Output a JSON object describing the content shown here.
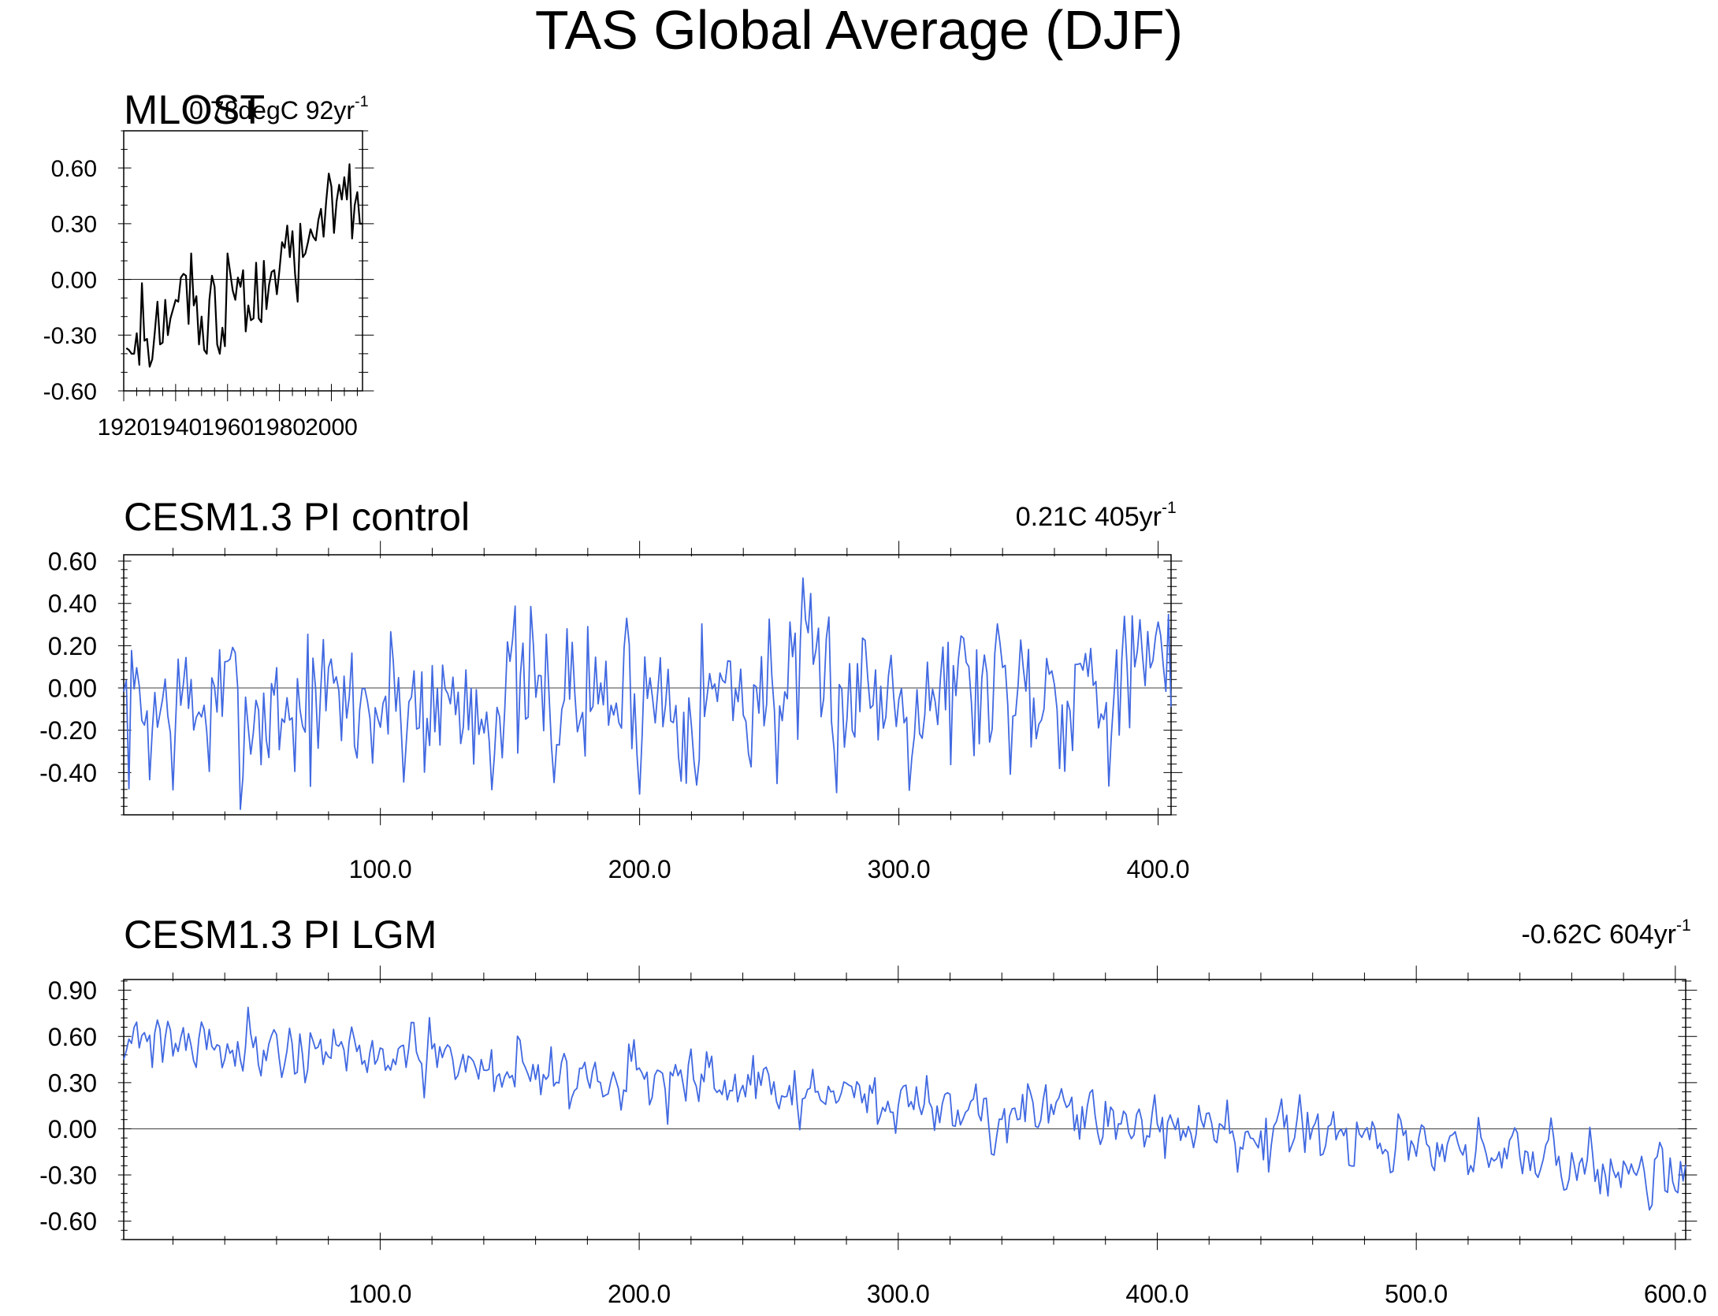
{
  "page": {
    "title": "TAS Global Average (DJF)"
  },
  "chart_data": [
    {
      "id": "mlost",
      "type": "line",
      "title": "MLOST",
      "trend_label": "0.78degC 92yr",
      "trend_sup": "-1",
      "color": "#000000",
      "xlim": [
        1920,
        2012
      ],
      "ylim": [
        -0.6,
        0.8
      ],
      "ytick_labels": [
        "0.60",
        "0.30",
        "0.00",
        "-0.30",
        "-0.60"
      ],
      "ytick_values": [
        0.6,
        0.3,
        0.0,
        -0.3,
        -0.6
      ],
      "xtick_labels": [
        "1920",
        "1940",
        "1960",
        "1980",
        "2000"
      ],
      "xtick_values": [
        1920,
        1940,
        1960,
        1980,
        2000
      ],
      "x_start": 1921,
      "values": [
        -0.37,
        -0.38,
        -0.4,
        -0.4,
        -0.29,
        -0.46,
        -0.02,
        -0.33,
        -0.32,
        -0.47,
        -0.43,
        -0.28,
        -0.12,
        -0.35,
        -0.34,
        -0.11,
        -0.3,
        -0.21,
        -0.16,
        -0.11,
        -0.12,
        0.01,
        0.03,
        0.02,
        -0.24,
        0.14,
        -0.14,
        -0.09,
        -0.35,
        -0.2,
        -0.38,
        -0.4,
        -0.11,
        0.02,
        -0.04,
        -0.35,
        -0.4,
        -0.26,
        -0.36,
        0.14,
        0.04,
        -0.06,
        -0.11,
        0.01,
        -0.04,
        0.05,
        -0.28,
        -0.14,
        -0.22,
        -0.21,
        0.09,
        -0.21,
        -0.23,
        0.1,
        -0.16,
        -0.03,
        0.04,
        0.05,
        -0.08,
        0.05,
        0.2,
        0.17,
        0.29,
        0.12,
        0.26,
        0.03,
        -0.12,
        0.3,
        0.12,
        0.14,
        0.2,
        0.27,
        0.23,
        0.21,
        0.32,
        0.38,
        0.23,
        0.42,
        0.57,
        0.5,
        0.25,
        0.42,
        0.51,
        0.43,
        0.55,
        0.43,
        0.62,
        0.22,
        0.4,
        0.47,
        0.3,
        0.3
      ]
    },
    {
      "id": "pi-control",
      "type": "line",
      "title": "CESM1.3 PI control",
      "trend_label": "0.21C 405yr",
      "trend_sup": "-1",
      "color": "#4169e1",
      "xlim": [
        1,
        405
      ],
      "ylim": [
        -0.6,
        0.63
      ],
      "ytick_labels": [
        "0.60",
        "0.40",
        "0.20",
        "0.00",
        "-0.20",
        "-0.40"
      ],
      "ytick_values": [
        0.6,
        0.4,
        0.2,
        0.0,
        -0.2,
        -0.4
      ],
      "xtick_labels": [
        "100.0",
        "200.0",
        "300.0",
        "400.0"
      ],
      "xtick_values": [
        100,
        200,
        300,
        400
      ],
      "n_points": 405,
      "generator": {
        "seed": 7,
        "mean_start": -0.12,
        "mean_end": 0.05,
        "amp": 0.26,
        "min": -0.58,
        "max": 0.52
      }
    },
    {
      "id": "pi-lgm",
      "type": "line",
      "title": "CESM1.3 PI LGM",
      "trend_label": "-0.62C 604yr",
      "trend_sup": "-1",
      "color": "#4169e1",
      "xlim": [
        1,
        604
      ],
      "ylim": [
        -0.72,
        0.97
      ],
      "ytick_labels": [
        "0.90",
        "0.60",
        "0.30",
        "0.00",
        "-0.30",
        "-0.60"
      ],
      "ytick_values": [
        0.9,
        0.6,
        0.3,
        0.0,
        -0.3,
        -0.6
      ],
      "xtick_labels": [
        "100.0",
        "200.0",
        "300.0",
        "400.0",
        "500.0",
        "600.0"
      ],
      "xtick_values": [
        100,
        200,
        300,
        400,
        500,
        600
      ],
      "n_points": 604,
      "generator": {
        "seed": 21,
        "mean_start": 0.62,
        "mean_end": -0.28,
        "amp": 0.13,
        "min": -0.72,
        "max": 0.97
      }
    }
  ]
}
